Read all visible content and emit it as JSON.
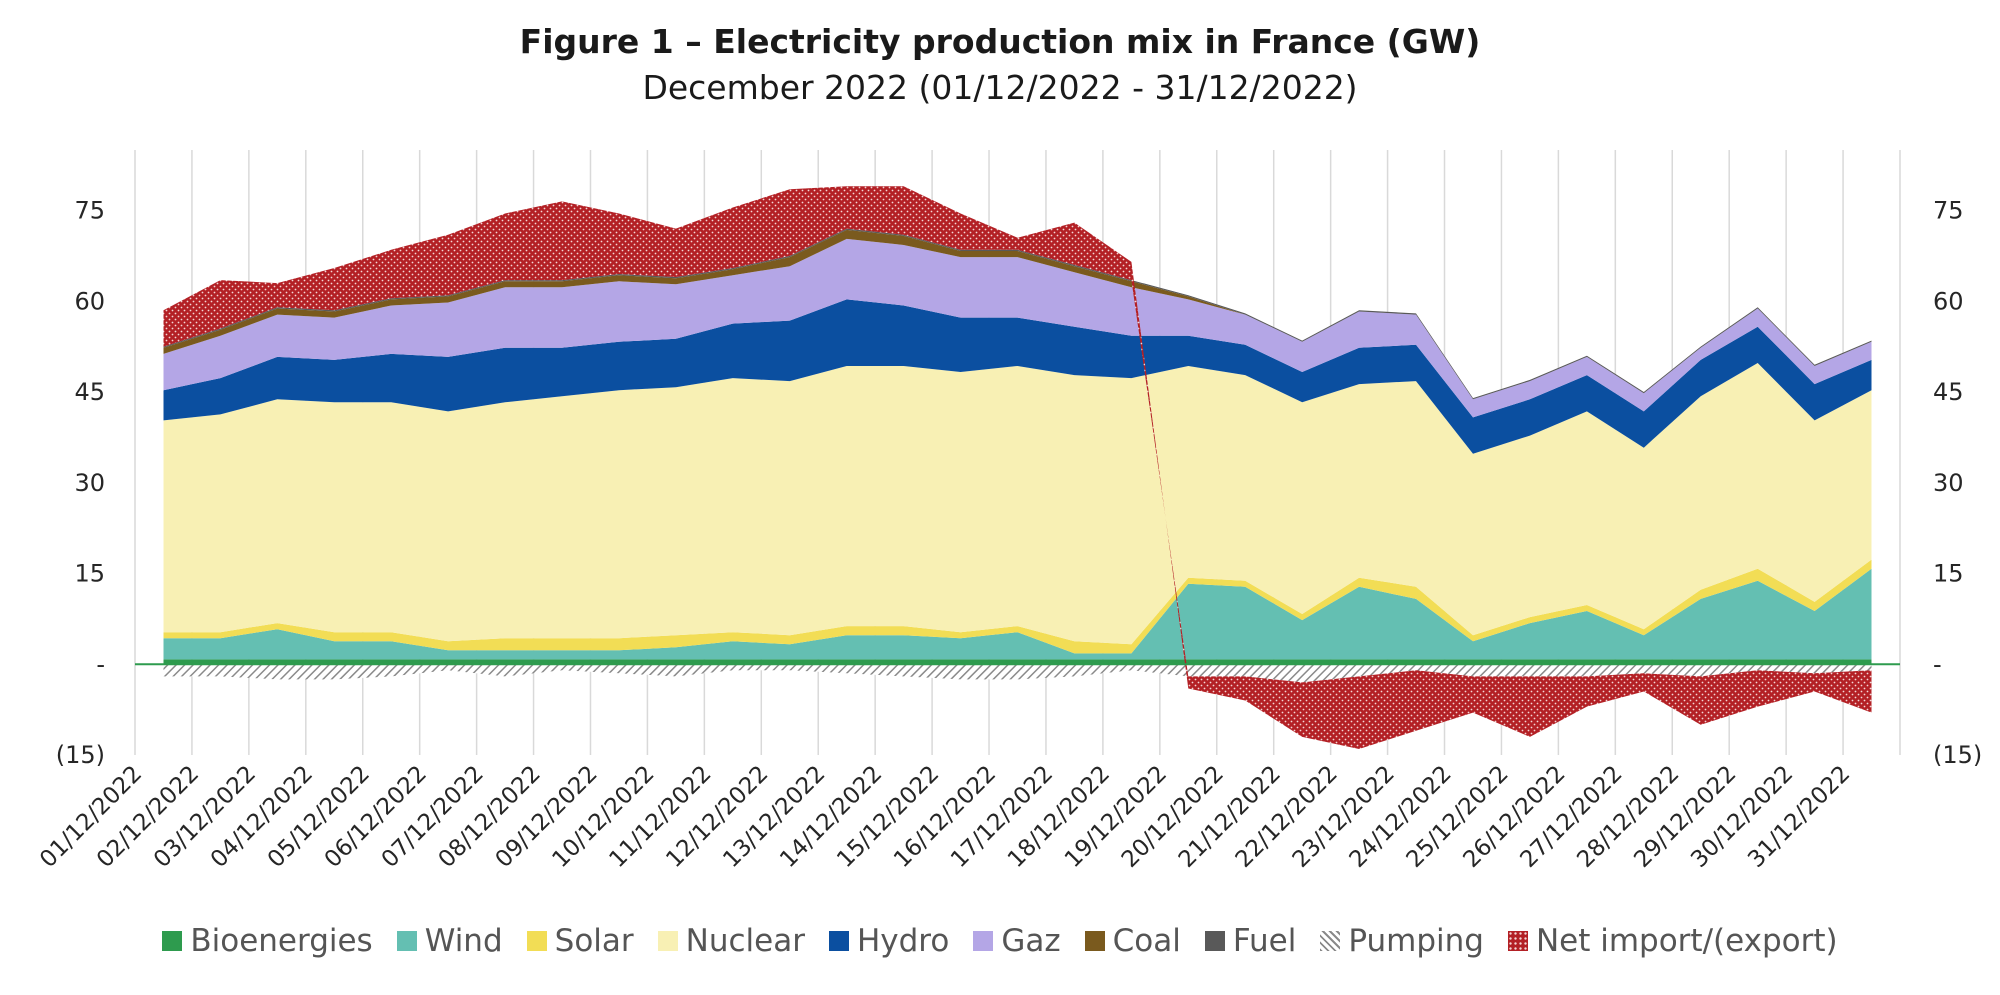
{
  "chart_data": {
    "type": "area",
    "title": "Figure 1 – Electricity production mix in France (GW)",
    "subtitle": "December 2022 (01/12/2022 - 31/12/2022)",
    "xlabel": "",
    "ylabel": "",
    "ylim": [
      -15,
      85
    ],
    "y_ticks": [
      75,
      60,
      45,
      30,
      15,
      0,
      -15
    ],
    "y_tick_labels": [
      "75",
      "60",
      "45",
      "30",
      "15",
      "-",
      "(15)"
    ],
    "grid": "vertical",
    "legend_position": "bottom",
    "x": [
      "01/12/2022",
      "02/12/2022",
      "03/12/2022",
      "04/12/2022",
      "05/12/2022",
      "06/12/2022",
      "07/12/2022",
      "08/12/2022",
      "09/12/2022",
      "10/12/2022",
      "11/12/2022",
      "12/12/2022",
      "13/12/2022",
      "14/12/2022",
      "15/12/2022",
      "16/12/2022",
      "17/12/2022",
      "18/12/2022",
      "19/12/2022",
      "20/12/2022",
      "21/12/2022",
      "22/12/2022",
      "23/12/2022",
      "24/12/2022",
      "25/12/2022",
      "26/12/2022",
      "27/12/2022",
      "28/12/2022",
      "29/12/2022",
      "30/12/2022",
      "31/12/2022"
    ],
    "series": [
      {
        "name": "Bioenergies",
        "color": "#2e9b4e",
        "pattern": "solid",
        "values": [
          0.8,
          0.8,
          0.8,
          0.8,
          0.8,
          0.8,
          0.8,
          0.8,
          0.8,
          0.8,
          0.8,
          0.8,
          0.8,
          0.8,
          0.8,
          0.8,
          0.8,
          0.8,
          0.8,
          0.8,
          0.8,
          0.8,
          0.8,
          0.8,
          0.8,
          0.8,
          0.8,
          0.8,
          0.8,
          0.8,
          0.8
        ]
      },
      {
        "name": "Wind",
        "color": "#64bfb2",
        "pattern": "solid",
        "values": [
          3.5,
          3.5,
          5,
          3,
          3,
          1.5,
          1.5,
          1.5,
          1.5,
          2,
          3,
          2.5,
          4,
          4,
          3.5,
          4.5,
          1,
          1,
          12.5,
          12,
          6.5,
          12,
          10,
          3,
          6,
          8,
          4,
          10,
          13,
          8,
          15
        ]
      },
      {
        "name": "Solar",
        "color": "#f2dd55",
        "pattern": "solid",
        "values": [
          1,
          1,
          1,
          1.5,
          1.5,
          1.5,
          2,
          2,
          2,
          2,
          1.5,
          1.5,
          1.5,
          1.5,
          1,
          1,
          2,
          1.5,
          1,
          1,
          1,
          1.5,
          2,
          1,
          1,
          1,
          1,
          1.5,
          2,
          1.5,
          1.5
        ]
      },
      {
        "name": "Nuclear",
        "color": "#f8f0b4",
        "pattern": "solid",
        "values": [
          35,
          36,
          37,
          38,
          38,
          38,
          39,
          40,
          41,
          41,
          42,
          42,
          43,
          43,
          43,
          43,
          44,
          44,
          35,
          34,
          35,
          32,
          34,
          30,
          30,
          32,
          30,
          32,
          34,
          30,
          28
        ]
      },
      {
        "name": "Hydro",
        "color": "#0b4fa0",
        "pattern": "solid",
        "values": [
          5,
          6,
          7,
          7,
          8,
          9,
          9,
          8,
          8,
          8,
          9,
          10,
          11,
          10,
          9,
          8,
          8,
          7,
          5,
          5,
          5,
          6,
          6,
          6,
          6,
          6,
          6,
          6,
          6,
          6,
          5
        ]
      },
      {
        "name": "Gaz",
        "color": "#b4a6e6",
        "pattern": "solid",
        "values": [
          6,
          7,
          7,
          7,
          8,
          9,
          10,
          10,
          10,
          9,
          8,
          9,
          10,
          10,
          10,
          10,
          9,
          8,
          6,
          5,
          5,
          6,
          5,
          3,
          3,
          3,
          3,
          2,
          3,
          3,
          3
        ]
      },
      {
        "name": "Coal",
        "color": "#7a5a1e",
        "pattern": "solid",
        "values": [
          1,
          1,
          1,
          1,
          1,
          1,
          1,
          1,
          1,
          1,
          1,
          1.5,
          1.5,
          1.5,
          1,
          1,
          1,
          1,
          0.5,
          0,
          0,
          0,
          0,
          0,
          0,
          0,
          0,
          0,
          0,
          0,
          0
        ]
      },
      {
        "name": "Fuel",
        "color": "#595959",
        "pattern": "solid",
        "values": [
          0.2,
          0.2,
          0.2,
          0.2,
          0.2,
          0.2,
          0.2,
          0.2,
          0.2,
          0.2,
          0.2,
          0.2,
          0.2,
          0.2,
          0.2,
          0.2,
          0.2,
          0.2,
          0.2,
          0.2,
          0.2,
          0.2,
          0.2,
          0.2,
          0.2,
          0.2,
          0.2,
          0.2,
          0.2,
          0.2,
          0.2
        ]
      },
      {
        "name": "Pumping",
        "color": "#9a9a9a",
        "pattern": "hatch",
        "values": [
          -2,
          -2,
          -2.5,
          -2.5,
          -2,
          -1,
          -2,
          -1,
          -1.5,
          -2,
          -1,
          -1,
          -1.5,
          -2,
          -2.5,
          -2.5,
          -2,
          -1,
          -2,
          -2,
          -3,
          -2,
          -1,
          -2,
          -2,
          -2,
          -1.5,
          -2,
          -1,
          -1.5,
          -1
        ]
      },
      {
        "name": "Net import/(export)",
        "color": "#b32025",
        "pattern": "dots",
        "values": [
          6,
          8,
          4,
          7,
          8,
          10,
          11,
          13,
          10,
          8,
          10,
          11,
          7,
          8,
          6,
          2,
          7,
          3,
          -2,
          -4,
          -9,
          -12,
          -10,
          -6,
          -10,
          -5,
          -3,
          -8,
          -6,
          -3,
          -7
        ]
      }
    ]
  }
}
